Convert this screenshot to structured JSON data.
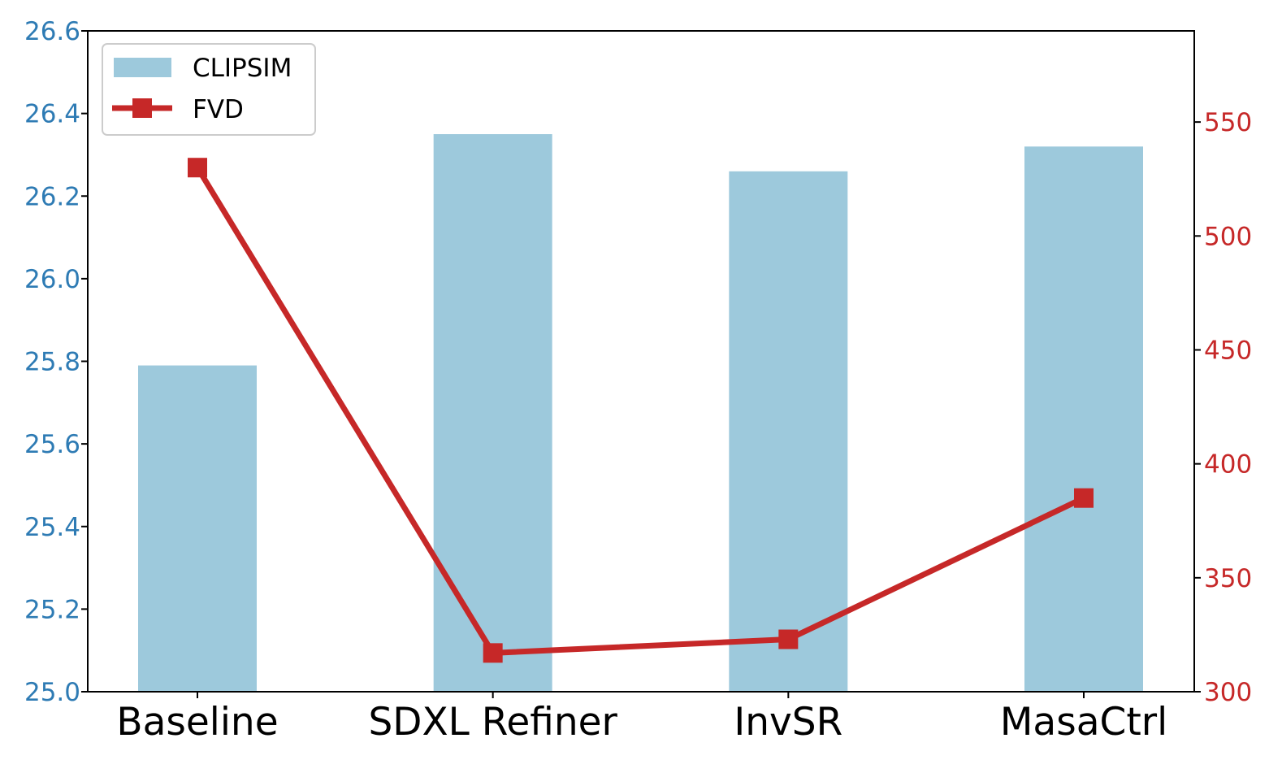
{
  "chart_data": {
    "type": "bar",
    "categories": [
      "Baseline",
      "SDXL Refiner",
      "InvSR",
      "MasaCtrl"
    ],
    "series": [
      {
        "name": "CLIPSIM",
        "type": "bar",
        "axis": "left",
        "values": [
          25.79,
          26.35,
          26.26,
          26.32
        ],
        "color": "#9dc9dc"
      },
      {
        "name": "FVD",
        "type": "line",
        "axis": "right",
        "marker": "square",
        "values": [
          530,
          317,
          323,
          385
        ],
        "color": "#c62828"
      }
    ],
    "y_left": {
      "ylim": [
        25.0,
        26.6
      ],
      "ticks": [
        "25.0",
        "25.2",
        "25.4",
        "25.6",
        "25.8",
        "26.0",
        "26.2",
        "26.4",
        "26.6"
      ],
      "color": "#2e7bb4"
    },
    "y_right": {
      "ylim": [
        300,
        590
      ],
      "ticks": [
        "300",
        "350",
        "400",
        "450",
        "500",
        "550"
      ],
      "color": "#c62828"
    },
    "title": "",
    "xlabel": "",
    "ylabel": "",
    "legend": {
      "position": "top-left",
      "entries": [
        "CLIPSIM",
        "FVD"
      ]
    },
    "grid": false
  }
}
